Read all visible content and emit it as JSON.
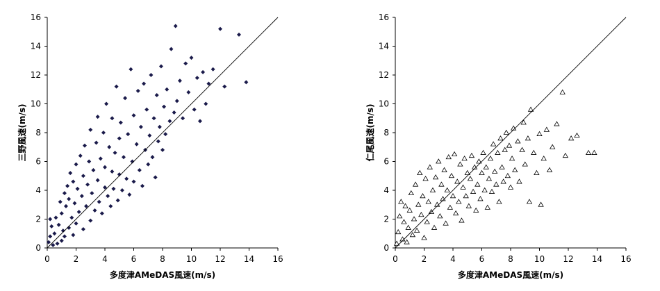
{
  "chart_data": [
    {
      "type": "scatter",
      "xlabel": "多度津AMeDAS風速(m/s)",
      "ylabel": "三野風速(m/s)",
      "xlim": [
        0,
        16
      ],
      "ylim": [
        0,
        16
      ],
      "xticks": [
        "0",
        "2",
        "4",
        "6",
        "8",
        "10",
        "12",
        "14",
        "16"
      ],
      "yticks": [
        "0",
        "2",
        "4",
        "6",
        "8",
        "10",
        "12",
        "14",
        "16"
      ],
      "grid": false,
      "marker": "filled-diamond",
      "marker_color": "#1a1a4a",
      "reference_line": {
        "x": [
          0,
          16
        ],
        "y": [
          0,
          16
        ]
      },
      "points": [
        [
          0.1,
          0.4
        ],
        [
          0.2,
          0.8
        ],
        [
          0.3,
          1.5
        ],
        [
          0.2,
          2.0
        ],
        [
          0.4,
          0.2
        ],
        [
          0.5,
          1.0
        ],
        [
          0.6,
          2.1
        ],
        [
          0.7,
          0.3
        ],
        [
          0.8,
          1.6
        ],
        [
          0.9,
          3.2
        ],
        [
          1.0,
          0.5
        ],
        [
          1.0,
          2.4
        ],
        [
          1.1,
          1.2
        ],
        [
          1.2,
          3.8
        ],
        [
          1.2,
          0.8
        ],
        [
          1.3,
          2.9
        ],
        [
          1.4,
          4.3
        ],
        [
          1.5,
          1.4
        ],
        [
          1.5,
          3.4
        ],
        [
          1.6,
          5.2
        ],
        [
          1.7,
          2.1
        ],
        [
          1.8,
          4.6
        ],
        [
          1.8,
          0.9
        ],
        [
          1.9,
          3.1
        ],
        [
          2.0,
          5.8
        ],
        [
          2.0,
          1.7
        ],
        [
          2.1,
          4.1
        ],
        [
          2.2,
          2.5
        ],
        [
          2.3,
          6.4
        ],
        [
          2.4,
          3.6
        ],
        [
          2.5,
          1.3
        ],
        [
          2.5,
          5.0
        ],
        [
          2.6,
          7.1
        ],
        [
          2.7,
          2.9
        ],
        [
          2.8,
          4.4
        ],
        [
          2.9,
          6.0
        ],
        [
          3.0,
          1.9
        ],
        [
          3.0,
          8.2
        ],
        [
          3.1,
          3.8
        ],
        [
          3.2,
          5.4
        ],
        [
          3.3,
          2.6
        ],
        [
          3.4,
          7.3
        ],
        [
          3.5,
          4.7
        ],
        [
          3.5,
          9.1
        ],
        [
          3.6,
          3.2
        ],
        [
          3.7,
          6.2
        ],
        [
          3.8,
          2.4
        ],
        [
          3.9,
          8.0
        ],
        [
          4.0,
          4.2
        ],
        [
          4.0,
          5.6
        ],
        [
          4.1,
          10.0
        ],
        [
          4.2,
          3.6
        ],
        [
          4.3,
          7.0
        ],
        [
          4.4,
          2.9
        ],
        [
          4.5,
          5.3
        ],
        [
          4.5,
          9.0
        ],
        [
          4.6,
          4.1
        ],
        [
          4.7,
          6.6
        ],
        [
          4.8,
          11.2
        ],
        [
          4.9,
          3.3
        ],
        [
          5.0,
          7.6
        ],
        [
          5.0,
          5.1
        ],
        [
          5.1,
          8.7
        ],
        [
          5.2,
          4.0
        ],
        [
          5.3,
          6.3
        ],
        [
          5.4,
          10.4
        ],
        [
          5.5,
          4.8
        ],
        [
          5.6,
          7.9
        ],
        [
          5.7,
          3.7
        ],
        [
          5.8,
          12.4
        ],
        [
          5.9,
          6.0
        ],
        [
          6.0,
          9.2
        ],
        [
          6.0,
          4.6
        ],
        [
          6.2,
          7.2
        ],
        [
          6.3,
          10.9
        ],
        [
          6.4,
          5.4
        ],
        [
          6.5,
          8.4
        ],
        [
          6.6,
          4.3
        ],
        [
          6.7,
          11.4
        ],
        [
          6.8,
          6.8
        ],
        [
          6.9,
          9.6
        ],
        [
          7.0,
          5.8
        ],
        [
          7.1,
          7.8
        ],
        [
          7.2,
          12.0
        ],
        [
          7.3,
          6.3
        ],
        [
          7.4,
          9.0
        ],
        [
          7.5,
          4.9
        ],
        [
          7.6,
          10.6
        ],
        [
          7.7,
          7.4
        ],
        [
          7.8,
          8.4
        ],
        [
          7.9,
          12.6
        ],
        [
          8.0,
          6.8
        ],
        [
          8.1,
          9.8
        ],
        [
          8.2,
          7.9
        ],
        [
          8.3,
          11.0
        ],
        [
          8.5,
          8.8
        ],
        [
          8.6,
          13.8
        ],
        [
          8.8,
          9.4
        ],
        [
          8.9,
          15.4
        ],
        [
          9.0,
          10.2
        ],
        [
          9.2,
          11.6
        ],
        [
          9.4,
          9.0
        ],
        [
          9.6,
          12.8
        ],
        [
          9.8,
          10.8
        ],
        [
          10.0,
          13.2
        ],
        [
          10.2,
          9.6
        ],
        [
          10.4,
          11.8
        ],
        [
          10.6,
          8.8
        ],
        [
          10.8,
          12.2
        ],
        [
          11.0,
          10.0
        ],
        [
          11.2,
          11.4
        ],
        [
          11.5,
          12.4
        ],
        [
          12.0,
          15.2
        ],
        [
          12.3,
          11.2
        ],
        [
          13.3,
          14.8
        ],
        [
          13.8,
          11.5
        ]
      ]
    },
    {
      "type": "scatter",
      "xlabel": "多度津AMeDAS風速(m/s)",
      "ylabel": "仁尾風速(m/s)",
      "xlim": [
        0,
        16
      ],
      "ylim": [
        0,
        16
      ],
      "xticks": [
        "0",
        "2",
        "4",
        "6",
        "8",
        "10",
        "12",
        "14",
        "16"
      ],
      "yticks": [
        "0",
        "2",
        "4",
        "6",
        "8",
        "10",
        "12",
        "14",
        "16"
      ],
      "grid": false,
      "marker": "open-triangle",
      "marker_color": "#000000",
      "reference_line": {
        "x": [
          0,
          16
        ],
        "y": [
          0,
          16
        ]
      },
      "points": [
        [
          0.1,
          0.3
        ],
        [
          0.2,
          1.1
        ],
        [
          0.3,
          2.2
        ],
        [
          0.4,
          3.2
        ],
        [
          0.5,
          0.6
        ],
        [
          0.6,
          1.8
        ],
        [
          0.7,
          2.9
        ],
        [
          0.8,
          0.4
        ],
        [
          0.9,
          1.4
        ],
        [
          1.0,
          2.6
        ],
        [
          1.1,
          3.8
        ],
        [
          1.2,
          0.9
        ],
        [
          1.3,
          2.0
        ],
        [
          1.4,
          4.4
        ],
        [
          1.5,
          1.2
        ],
        [
          1.6,
          3.0
        ],
        [
          1.7,
          5.2
        ],
        [
          1.8,
          2.3
        ],
        [
          1.9,
          3.6
        ],
        [
          2.0,
          0.7
        ],
        [
          2.1,
          4.8
        ],
        [
          2.2,
          1.8
        ],
        [
          2.3,
          3.2
        ],
        [
          2.4,
          5.6
        ],
        [
          2.5,
          2.5
        ],
        [
          2.6,
          4.0
        ],
        [
          2.7,
          1.4
        ],
        [
          2.8,
          4.9
        ],
        [
          2.9,
          3.0
        ],
        [
          3.0,
          6.0
        ],
        [
          3.1,
          2.2
        ],
        [
          3.2,
          4.4
        ],
        [
          3.3,
          3.4
        ],
        [
          3.4,
          5.4
        ],
        [
          3.5,
          1.7
        ],
        [
          3.6,
          4.0
        ],
        [
          3.7,
          6.3
        ],
        [
          3.8,
          2.8
        ],
        [
          3.9,
          5.0
        ],
        [
          4.0,
          3.6
        ],
        [
          4.1,
          6.5
        ],
        [
          4.2,
          2.4
        ],
        [
          4.3,
          4.6
        ],
        [
          4.4,
          3.2
        ],
        [
          4.5,
          5.8
        ],
        [
          4.6,
          1.9
        ],
        [
          4.7,
          4.2
        ],
        [
          4.8,
          6.2
        ],
        [
          4.9,
          3.6
        ],
        [
          5.0,
          5.2
        ],
        [
          5.1,
          2.9
        ],
        [
          5.2,
          4.8
        ],
        [
          5.3,
          6.4
        ],
        [
          5.4,
          3.9
        ],
        [
          5.5,
          5.6
        ],
        [
          5.6,
          2.6
        ],
        [
          5.7,
          4.4
        ],
        [
          5.8,
          6.0
        ],
        [
          5.9,
          3.4
        ],
        [
          6.0,
          5.2
        ],
        [
          6.1,
          6.6
        ],
        [
          6.2,
          4.0
        ],
        [
          6.3,
          5.6
        ],
        [
          6.4,
          2.8
        ],
        [
          6.5,
          4.8
        ],
        [
          6.6,
          6.2
        ],
        [
          6.7,
          3.9
        ],
        [
          6.8,
          7.2
        ],
        [
          6.9,
          5.3
        ],
        [
          7.0,
          4.4
        ],
        [
          7.1,
          6.6
        ],
        [
          7.2,
          3.2
        ],
        [
          7.3,
          7.6
        ],
        [
          7.4,
          5.6
        ],
        [
          7.5,
          4.6
        ],
        [
          7.6,
          6.8
        ],
        [
          7.7,
          8.0
        ],
        [
          7.8,
          5.0
        ],
        [
          7.9,
          7.1
        ],
        [
          8.0,
          4.2
        ],
        [
          8.1,
          6.2
        ],
        [
          8.2,
          8.3
        ],
        [
          8.3,
          5.4
        ],
        [
          8.5,
          7.4
        ],
        [
          8.6,
          4.6
        ],
        [
          8.8,
          6.8
        ],
        [
          8.9,
          8.7
        ],
        [
          9.0,
          5.8
        ],
        [
          9.2,
          7.6
        ],
        [
          9.3,
          3.2
        ],
        [
          9.4,
          9.6
        ],
        [
          9.6,
          6.6
        ],
        [
          9.8,
          5.2
        ],
        [
          10.0,
          7.9
        ],
        [
          10.1,
          3.0
        ],
        [
          10.3,
          6.2
        ],
        [
          10.5,
          8.2
        ],
        [
          10.7,
          5.4
        ],
        [
          10.9,
          7.0
        ],
        [
          11.2,
          8.6
        ],
        [
          11.6,
          10.8
        ],
        [
          11.8,
          6.4
        ],
        [
          12.2,
          7.6
        ],
        [
          12.6,
          7.8
        ],
        [
          13.4,
          6.6
        ],
        [
          13.8,
          6.6
        ]
      ]
    }
  ]
}
